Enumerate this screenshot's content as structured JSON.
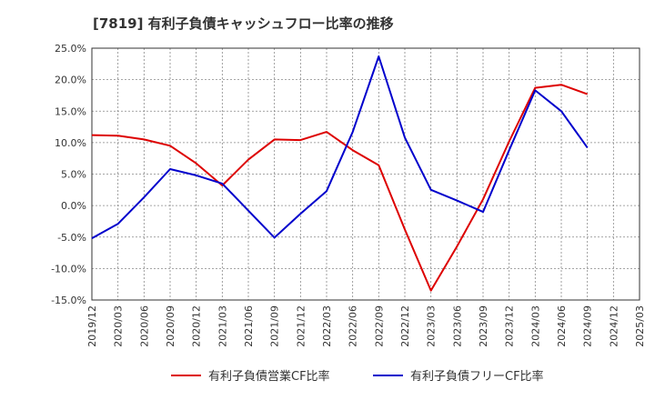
{
  "chart_data": {
    "type": "line",
    "title": "[7819]  有利子負債キャッシュフロー比率の推移",
    "xlabel": "",
    "ylabel": "",
    "ylim": [
      -15,
      25
    ],
    "xlim": [
      "2019/12",
      "2025/03"
    ],
    "grid": true,
    "legend": "bottom",
    "y_ticks": [
      "25.0%",
      "20.0%",
      "15.0%",
      "10.0%",
      "5.0%",
      "0.0%",
      "-5.0%",
      "-10.0%",
      "-15.0%"
    ],
    "x_ticks": [
      "2019/12",
      "2020/03",
      "2020/06",
      "2020/09",
      "2020/12",
      "2021/03",
      "2021/06",
      "2021/09",
      "2021/12",
      "2022/03",
      "2022/06",
      "2022/09",
      "2022/12",
      "2023/03",
      "2023/06",
      "2023/09",
      "2023/12",
      "2024/03",
      "2024/06",
      "2024/09",
      "2024/12",
      "2025/03"
    ],
    "series": [
      {
        "name": "有利子負債営業CF比率",
        "color": "#dd0000",
        "x": [
          "2019/12",
          "2020/03",
          "2020/06",
          "2020/09",
          "2020/12",
          "2021/03",
          "2021/06",
          "2021/09",
          "2021/12",
          "2022/03",
          "2022/06",
          "2022/09",
          "2022/12",
          "2023/03",
          "2023/06",
          "2023/09",
          "2023/12",
          "2024/03",
          "2024/06",
          "2024/09"
        ],
        "values": [
          11.2,
          11.1,
          10.5,
          9.5,
          6.7,
          3.2,
          7.3,
          10.5,
          10.4,
          11.7,
          8.8,
          6.4,
          -3.8,
          -13.5,
          -6.5,
          1.0,
          10.2,
          18.7,
          19.2,
          17.7
        ]
      },
      {
        "name": "有利子負債フリーCF比率",
        "color": "#0000cc",
        "x": [
          "2019/12",
          "2020/03",
          "2020/06",
          "2020/09",
          "2020/12",
          "2021/03",
          "2021/06",
          "2021/09",
          "2021/12",
          "2022/03",
          "2022/06",
          "2022/09",
          "2022/12",
          "2023/03",
          "2023/06",
          "2023/09",
          "2023/12",
          "2024/03",
          "2024/06",
          "2024/09"
        ],
        "values": [
          -5.2,
          -2.9,
          1.3,
          5.8,
          4.8,
          3.5,
          -0.8,
          -5.1,
          -1.3,
          2.3,
          11.7,
          23.7,
          10.8,
          2.5,
          0.8,
          -1.0,
          8.8,
          18.3,
          15.0,
          9.2
        ]
      }
    ]
  }
}
